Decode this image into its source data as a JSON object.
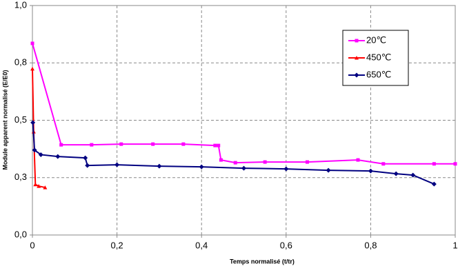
{
  "chart_data": {
    "type": "line",
    "xlabel": "Temps normalisé (t/tr)",
    "ylabel": "Module apparent normalisé (E/E0)",
    "xlim": [
      0,
      1
    ],
    "xticks": [
      0,
      {
        "value": 0.2,
        "label": "0,2"
      },
      {
        "value": 0.4,
        "label": "0,4"
      },
      {
        "value": 0.6,
        "label": "0,6"
      },
      {
        "value": 0.8,
        "label": "0,8"
      },
      1
    ],
    "ylim": [
      0,
      1
    ],
    "yticks": [
      {
        "value": 0,
        "label": "0,0"
      },
      {
        "value": 0.25,
        "label": "0,3"
      },
      {
        "value": 0.5,
        "label": "0,5"
      },
      {
        "value": 0.75,
        "label": "0,8"
      },
      {
        "value": 1,
        "label": "1,0"
      }
    ],
    "grid": true,
    "legend": "upper right",
    "series": [
      {
        "name": "20℃",
        "color": "#ff00ff",
        "marker": "square",
        "x": [
          0,
          0.068,
          0.14,
          0.21,
          0.285,
          0.357,
          0.432,
          0.44,
          0.446,
          0.48,
          0.55,
          0.65,
          0.77,
          0.83,
          0.95,
          1.0
        ],
        "values": [
          0.835,
          0.393,
          0.393,
          0.396,
          0.396,
          0.396,
          0.39,
          0.39,
          0.327,
          0.315,
          0.318,
          0.318,
          0.327,
          0.31,
          0.31,
          0.31
        ]
      },
      {
        "name": "450℃",
        "color": "#ff0000",
        "marker": "triangle",
        "x": [
          0,
          0.003,
          0.007,
          0.015,
          0.03
        ],
        "values": [
          0.724,
          0.45,
          0.22,
          0.213,
          0.207
        ]
      },
      {
        "name": "650℃",
        "color": "#000080",
        "marker": "diamond",
        "x": [
          0.001,
          0.005,
          0.02,
          0.06,
          0.125,
          0.13,
          0.2,
          0.3,
          0.4,
          0.5,
          0.6,
          0.7,
          0.8,
          0.86,
          0.9,
          0.95
        ],
        "values": [
          0.49,
          0.37,
          0.35,
          0.342,
          0.336,
          0.303,
          0.306,
          0.3,
          0.297,
          0.291,
          0.288,
          0.282,
          0.279,
          0.267,
          0.261,
          0.222
        ]
      }
    ]
  }
}
